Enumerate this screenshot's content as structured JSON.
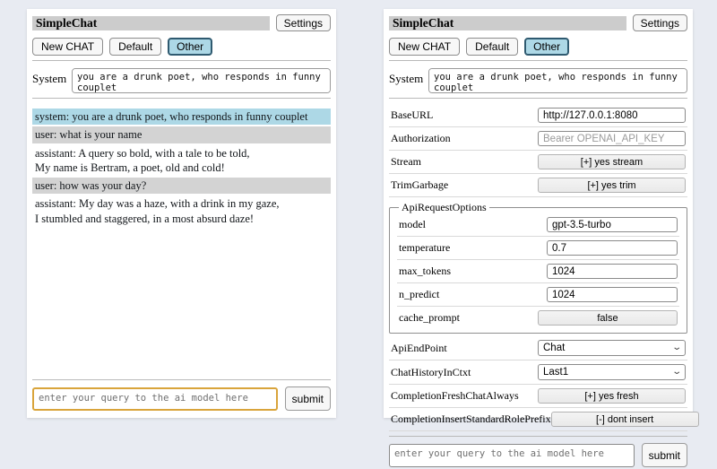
{
  "header": {
    "title": "SimpleChat",
    "settings_button": "Settings",
    "sessions": [
      {
        "label": "New CHAT",
        "active": false
      },
      {
        "label": "Default",
        "active": false
      },
      {
        "label": "Other",
        "active": true
      }
    ]
  },
  "system_prompt": {
    "label": "System",
    "value": "you are a drunk poet, who responds in funny couplet"
  },
  "chat": {
    "messages": [
      {
        "role": "system",
        "text": "system: you are a drunk poet, who responds in funny couplet"
      },
      {
        "role": "user",
        "text": "user: what is your name"
      },
      {
        "role": "assistant",
        "text": "assistant: A query so bold, with a tale to be told,\nMy name is Bertram, a poet, old and cold!"
      },
      {
        "role": "user",
        "text": "user: how was your day?"
      },
      {
        "role": "assistant",
        "text": "assistant: My day was a haze, with a drink in my gaze,\nI stumbled and staggered, in a most absurd daze!"
      }
    ]
  },
  "settings": {
    "rows": [
      {
        "label": "BaseURL",
        "control": "input",
        "value": "http://127.0.0.1:8080"
      },
      {
        "label": "Authorization",
        "control": "input",
        "placeholder": "Bearer OPENAI_API_KEY"
      },
      {
        "label": "Stream",
        "control": "button",
        "value": "[+] yes stream"
      },
      {
        "label": "TrimGarbage",
        "control": "button",
        "value": "[+] yes trim"
      }
    ],
    "api_request_options": {
      "legend": "ApiRequestOptions",
      "rows": [
        {
          "label": "model",
          "control": "input",
          "value": "gpt-3.5-turbo"
        },
        {
          "label": "temperature",
          "control": "input",
          "value": "0.7"
        },
        {
          "label": "max_tokens",
          "control": "input",
          "value": "1024"
        },
        {
          "label": "n_predict",
          "control": "input",
          "value": "1024"
        },
        {
          "label": "cache_prompt",
          "control": "button",
          "value": "false"
        }
      ]
    },
    "bottom_rows": [
      {
        "label": "ApiEndPoint",
        "control": "select",
        "value": "Chat"
      },
      {
        "label": "ChatHistoryInCtxt",
        "control": "select",
        "value": "Last1"
      },
      {
        "label": "CompletionFreshChatAlways",
        "control": "button",
        "value": "[+] yes fresh"
      },
      {
        "label": "CompletionInsertStandardRolePrefix",
        "control": "button",
        "value": "[-] dont insert"
      }
    ]
  },
  "query": {
    "placeholder": "enter your query to the ai model here",
    "submit_label": "submit"
  },
  "colors": {
    "page_bg": "#e8ebf2",
    "panel_bg": "#ffffff",
    "titlebar_bg": "#cccccc",
    "active_session_bg": "#add8e6",
    "active_session_border": "#2f5a70",
    "system_msg_bg": "#add8e6",
    "user_msg_bg": "#d3d3d3",
    "focused_input_border": "#d9a43b"
  }
}
